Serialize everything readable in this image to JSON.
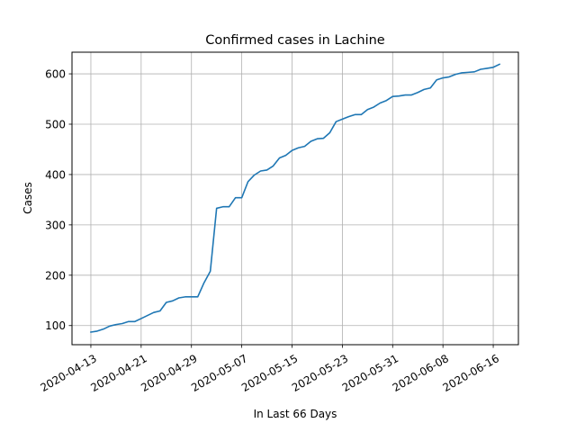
{
  "chart_data": {
    "type": "line",
    "title": "Confirmed cases in Lachine",
    "xlabel": "In Last 66 Days",
    "ylabel": "Cases",
    "grid": true,
    "line_color": "#1f77b4",
    "x_ticks": [
      "2020-04-13",
      "2020-04-21",
      "2020-04-29",
      "2020-05-07",
      "2020-05-15",
      "2020-05-23",
      "2020-05-31",
      "2020-06-08",
      "2020-06-16"
    ],
    "y_ticks": [
      100,
      200,
      300,
      400,
      500,
      600
    ],
    "xlim": [
      "2020-04-10",
      "2020-06-20"
    ],
    "ylim": [
      62,
      643
    ],
    "series": [
      {
        "x": [
          "2020-04-13",
          "2020-04-14",
          "2020-04-15",
          "2020-04-16",
          "2020-04-17",
          "2020-04-18",
          "2020-04-19",
          "2020-04-20",
          "2020-04-21",
          "2020-04-22",
          "2020-04-23",
          "2020-04-24",
          "2020-04-25",
          "2020-04-26",
          "2020-04-27",
          "2020-04-28",
          "2020-04-29",
          "2020-04-30",
          "2020-05-01",
          "2020-05-02",
          "2020-05-03",
          "2020-05-04",
          "2020-05-05",
          "2020-05-06",
          "2020-05-07",
          "2020-05-08",
          "2020-05-09",
          "2020-05-10",
          "2020-05-11",
          "2020-05-12",
          "2020-05-13",
          "2020-05-14",
          "2020-05-15",
          "2020-05-16",
          "2020-05-17",
          "2020-05-18",
          "2020-05-19",
          "2020-05-20",
          "2020-05-21",
          "2020-05-22",
          "2020-05-23",
          "2020-05-24",
          "2020-05-25",
          "2020-05-26",
          "2020-05-27",
          "2020-05-28",
          "2020-05-29",
          "2020-05-30",
          "2020-05-31",
          "2020-06-01",
          "2020-06-02",
          "2020-06-03",
          "2020-06-04",
          "2020-06-05",
          "2020-06-06",
          "2020-06-07",
          "2020-06-08",
          "2020-06-09",
          "2020-06-10",
          "2020-06-11",
          "2020-06-12",
          "2020-06-13",
          "2020-06-14",
          "2020-06-15",
          "2020-06-16",
          "2020-06-17"
        ],
        "y": [
          87,
          89,
          93,
          99,
          102,
          104,
          108,
          108,
          114,
          120,
          126,
          129,
          146,
          149,
          155,
          157,
          157,
          157,
          185,
          208,
          333,
          336,
          336,
          354,
          354,
          386,
          399,
          407,
          409,
          417,
          433,
          438,
          448,
          453,
          456,
          466,
          471,
          472,
          483,
          505,
          510,
          515,
          519,
          519,
          529,
          534,
          542,
          547,
          555,
          556,
          558,
          558,
          563,
          569,
          572,
          588,
          592,
          594,
          599,
          602,
          603,
          604,
          609,
          611,
          613,
          619
        ]
      }
    ]
  }
}
